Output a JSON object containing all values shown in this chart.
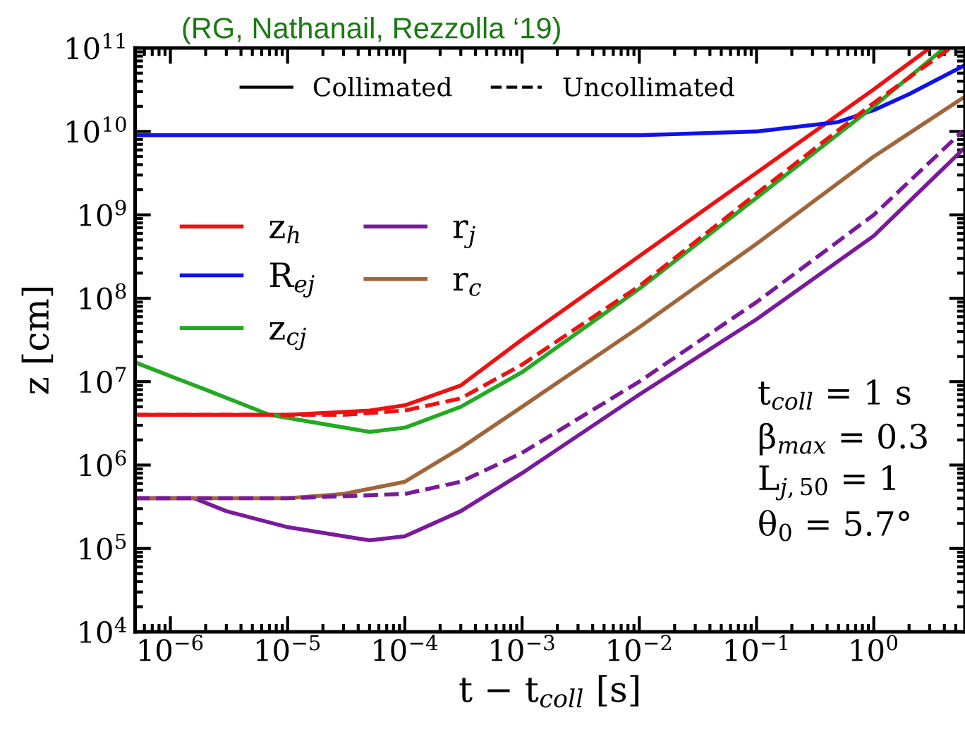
{
  "chart_data": {
    "type": "line",
    "title": "(RG, Nathanail, Rezzolla ‘19)",
    "xlabel": "t − t$_{coll}$ [s]",
    "ylabel": "z [cm]",
    "log": "xy",
    "xlim": [
      5e-07,
      6
    ],
    "ylim": [
      10000.0,
      100000000000.0
    ],
    "xticks": [
      {
        "value": 1e-06,
        "label": "10$^{−6}$"
      },
      {
        "value": 1e-05,
        "label": "10$^{−5}$"
      },
      {
        "value": 0.0001,
        "label": "10$^{−4}$"
      },
      {
        "value": 0.001,
        "label": "10$^{−3}$"
      },
      {
        "value": 0.01,
        "label": "10$^{−2}$"
      },
      {
        "value": 0.1,
        "label": "10$^{−1}$"
      },
      {
        "value": 1,
        "label": "10$^{0}$"
      }
    ],
    "yticks": [
      {
        "value": 10000.0,
        "label": "10$^{4}$"
      },
      {
        "value": 100000.0,
        "label": "10$^{5}$"
      },
      {
        "value": 1000000.0,
        "label": "10$^{6}$"
      },
      {
        "value": 10000000.0,
        "label": "10$^{7}$"
      },
      {
        "value": 100000000.0,
        "label": "10$^{8}$"
      },
      {
        "value": 1000000000.0,
        "label": "10$^{9}$"
      },
      {
        "value": 10000000000.0,
        "label": "10$^{10}$"
      },
      {
        "value": 100000000000.0,
        "label": "10$^{11}$"
      }
    ],
    "grid": false,
    "legend": "left",
    "marker": "none",
    "series": [
      {
        "name": "z$_{h}$",
        "color": "#ee1111",
        "line_style": "solid",
        "x": [
          5e-07,
          1e-05,
          5e-05,
          0.0001,
          0.0003,
          0.001,
          0.01,
          0.1,
          1,
          3
        ],
        "values": [
          4000000.0,
          4000000.0,
          4500000.0,
          5200000.0,
          9000000.0,
          32000000.0,
          320000000.0,
          3200000000.0,
          32000000000.0,
          100000000000.0
        ]
      },
      {
        "name": "R$_{ej}$",
        "color": "#1111ee",
        "line_style": "solid",
        "x": [
          5e-07,
          0.01,
          0.1,
          0.5,
          1,
          2,
          5.7
        ],
        "values": [
          9000000000.0,
          9000000000.0,
          10000000000.0,
          13000000000.0,
          18000000000.0,
          28000000000.0,
          60000000000.0
        ]
      },
      {
        "name": "z$_{cj}$",
        "color": "#22aa22",
        "line_style": "solid",
        "x": [
          5e-07,
          2e-06,
          7e-06,
          5e-05,
          0.0001,
          0.0003,
          0.001,
          0.01,
          0.1,
          1,
          4
        ],
        "values": [
          17000000.0,
          8000000.0,
          4000000.0,
          2500000.0,
          2800000.0,
          5000000.0,
          13000000.0,
          130000000.0,
          1600000000.0,
          20000000000.0,
          100000000000.0
        ]
      },
      {
        "name": "r$_{j}$",
        "color": "#7a1a9a",
        "line_style": "solid",
        "x": [
          5e-07,
          1.6e-06,
          3e-06,
          1e-05,
          5e-05,
          0.0001,
          0.0003,
          0.001,
          0.01,
          0.1,
          1,
          5.7
        ],
        "values": [
          400000.0,
          400000.0,
          280000.0,
          180000.0,
          125000.0,
          140000.0,
          280000.0,
          800000.0,
          7000000.0,
          56000000.0,
          560000000.0,
          6000000000.0
        ]
      },
      {
        "name": "r$_{c}$",
        "color": "#a0653a",
        "line_style": "solid",
        "x": [
          5e-07,
          1e-05,
          3e-05,
          0.0001,
          0.0003,
          0.001,
          0.01,
          0.1,
          1,
          5.7
        ],
        "values": [
          400000.0,
          400000.0,
          450000.0,
          630000.0,
          1600000.0,
          5000000.0,
          45000000.0,
          450000000.0,
          5000000000.0,
          25000000000.0
        ]
      },
      {
        "color": "#ee1111",
        "line_style": "dashed",
        "x": [
          5e-07,
          3e-05,
          0.0001,
          0.0003,
          0.001,
          0.01,
          0.1,
          1,
          4.5
        ],
        "values": [
          4000000.0,
          4000000.0,
          4500000.0,
          6300000.0,
          16000000.0,
          140000000.0,
          1800000000.0,
          22000000000.0,
          100000000000.0
        ]
      },
      {
        "color": "#7a1a9a",
        "line_style": "dashed",
        "x": [
          5e-07,
          1e-05,
          0.0001,
          0.0003,
          0.001,
          0.01,
          0.1,
          1,
          5.7
        ],
        "values": [
          400000.0,
          400000.0,
          450000.0,
          630000.0,
          1400000.0,
          10000000.0,
          90000000.0,
          1000000000.0,
          10000000000.0
        ]
      }
    ],
    "annotations": [
      "Collimated",
      "Uncollimated",
      "t$_{coll}$ = 1 s",
      "β$_{max}$ = 0.3",
      "L$_{j,50}$ = 1",
      "θ$_{0}$ = 5.7°"
    ]
  }
}
